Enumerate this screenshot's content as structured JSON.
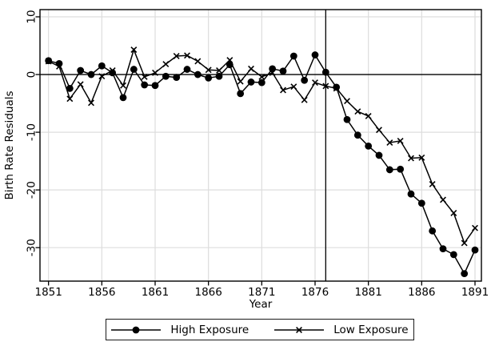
{
  "chart_data": {
    "type": "line",
    "title": "",
    "xlabel": "Year",
    "ylabel": "Birth Rate Residuals",
    "x": [
      1851,
      1852,
      1853,
      1854,
      1855,
      1856,
      1857,
      1858,
      1859,
      1860,
      1861,
      1862,
      1863,
      1864,
      1865,
      1866,
      1867,
      1868,
      1869,
      1870,
      1871,
      1872,
      1873,
      1874,
      1875,
      1876,
      1877,
      1878,
      1879,
      1880,
      1881,
      1882,
      1883,
      1884,
      1885,
      1886,
      1887,
      1888,
      1889,
      1890,
      1891
    ],
    "series": [
      {
        "name": "High Exposure",
        "marker": "circle",
        "values": [
          2.4,
          1.9,
          -2.4,
          0.7,
          0,
          1.5,
          0.3,
          -4,
          0.9,
          -1.8,
          -1.9,
          -0.3,
          -0.5,
          0.9,
          0,
          -0.6,
          -0.3,
          1.7,
          -3.3,
          -1.3,
          -1.4,
          1,
          0.6,
          3.2,
          -1,
          3.4,
          0.4,
          -2.2,
          -7.8,
          -10.5,
          -12.4,
          -14,
          -16.5,
          -16.4,
          -20.7,
          -22.3,
          -27.1,
          -30.2,
          -31.2,
          -34.5,
          -30.4
        ]
      },
      {
        "name": "Low Exposure",
        "marker": "x",
        "values": [
          2.3,
          1.4,
          -4.2,
          -1.7,
          -4.9,
          -0.3,
          0.7,
          -1.9,
          4.3,
          -0.4,
          0.3,
          1.8,
          3.2,
          3.3,
          2.3,
          0.8,
          0.7,
          2.5,
          -1.2,
          1,
          -0.4,
          0.3,
          -2.7,
          -2.1,
          -4.4,
          -1.4,
          -2,
          -2.4,
          -4.6,
          -6.4,
          -7.2,
          -9.6,
          -11.8,
          -11.5,
          -14.5,
          -14.4,
          -19,
          -21.7,
          -24,
          -29.2,
          -26.6
        ]
      }
    ],
    "x_ticks": [
      1851,
      1856,
      1861,
      1866,
      1871,
      1876,
      1881,
      1886,
      1891
    ],
    "y_ticks": [
      10,
      0,
      -10,
      -20,
      -30
    ],
    "xlim": [
      1850.2,
      1891.6
    ],
    "ylim": [
      -35.8,
      11.25
    ],
    "reference_lines": {
      "horizontal_y": 0,
      "vertical_x": 1877
    },
    "grid": true,
    "legend_position": "bottom-center",
    "colors": {
      "series": "#000000",
      "grid": "#dddddd",
      "axis": "#000000",
      "background": "#ffffff"
    }
  }
}
